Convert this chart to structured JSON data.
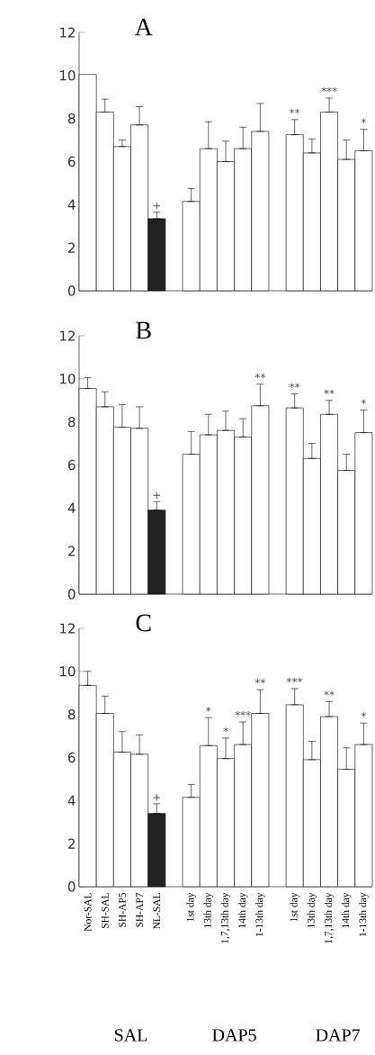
{
  "chart_data": [
    {
      "type": "bar",
      "title": "A",
      "categories": [
        null,
        null,
        null,
        null,
        null,
        null,
        null,
        null,
        null,
        null,
        null,
        null,
        null,
        null,
        null,
        null,
        null
      ],
      "values": [
        10.05,
        8.3,
        6.7,
        7.7,
        3.35,
        null,
        4.15,
        6.6,
        6.0,
        6.6,
        7.4,
        null,
        7.25,
        6.4,
        8.3,
        6.1,
        6.5
      ],
      "errors": [
        null,
        [
          8.3,
          8.9
        ],
        [
          6.7,
          7.0
        ],
        [
          7.7,
          8.55
        ],
        [
          3.35,
          3.65
        ],
        null,
        [
          4.15,
          4.75
        ],
        [
          6.6,
          7.85
        ],
        [
          6.0,
          6.95
        ],
        [
          6.6,
          7.6
        ],
        [
          7.4,
          8.7
        ],
        null,
        [
          7.25,
          7.95
        ],
        [
          6.4,
          7.05
        ],
        [
          8.3,
          8.95
        ],
        [
          6.1,
          7.0
        ],
        [
          6.5,
          7.5
        ]
      ],
      "value_labels": [
        null,
        null,
        null,
        null,
        "+",
        null,
        null,
        null,
        null,
        null,
        null,
        null,
        "**",
        null,
        "***",
        null,
        "*"
      ],
      "colors": [
        "#ffffff",
        "#ffffff",
        "#ffffff",
        "#ffffff",
        "#222222",
        null,
        "#ffffff",
        "#ffffff",
        "#ffffff",
        "#ffffff",
        "#ffffff",
        null,
        "#ffffff",
        "#ffffff",
        "#ffffff",
        "#ffffff",
        "#ffffff"
      ],
      "ylim": [
        0,
        12
      ],
      "yticks": [
        0,
        2,
        4,
        6,
        8,
        10,
        12
      ]
    },
    {
      "type": "bar",
      "title": "B",
      "categories": [
        null,
        null,
        null,
        null,
        null,
        null,
        null,
        null,
        null,
        null,
        null,
        null,
        null,
        null,
        null,
        null,
        null
      ],
      "values": [
        9.55,
        8.7,
        7.75,
        7.7,
        3.9,
        null,
        6.5,
        7.4,
        7.6,
        7.3,
        8.75,
        null,
        8.65,
        6.3,
        8.35,
        5.75,
        7.5
      ],
      "errors": [
        [
          9.55,
          10.05
        ],
        [
          8.7,
          9.4
        ],
        [
          7.75,
          8.8
        ],
        [
          7.7,
          8.7
        ],
        [
          3.9,
          4.3
        ],
        null,
        [
          6.5,
          7.55
        ],
        [
          7.4,
          8.35
        ],
        [
          7.6,
          8.5
        ],
        [
          7.3,
          8.15
        ],
        [
          8.75,
          9.75
        ],
        null,
        [
          8.65,
          9.3
        ],
        [
          6.3,
          7.0
        ],
        [
          8.35,
          9.0
        ],
        [
          5.75,
          6.5
        ],
        [
          7.5,
          8.55
        ]
      ],
      "value_labels": [
        null,
        null,
        null,
        null,
        "+",
        null,
        null,
        null,
        null,
        null,
        "**",
        null,
        "**",
        null,
        "**",
        null,
        "*"
      ],
      "colors": [
        "#ffffff",
        "#ffffff",
        "#ffffff",
        "#ffffff",
        "#222222",
        null,
        "#ffffff",
        "#ffffff",
        "#ffffff",
        "#ffffff",
        "#ffffff",
        null,
        "#ffffff",
        "#ffffff",
        "#ffffff",
        "#ffffff",
        "#ffffff"
      ],
      "ylim": [
        0,
        12
      ],
      "yticks": [
        0,
        2,
        4,
        6,
        8,
        10,
        12
      ]
    },
    {
      "type": "bar",
      "title": "C",
      "categories": [
        "Nor-SAL",
        "SH-SAL",
        "SH-AP5",
        "SH-AP7",
        "NL-SAL",
        null,
        "1st day",
        "13th day",
        "1,7,13th day",
        "14th day",
        "1-13th day",
        null,
        "1st day",
        "13th day",
        "1,7,13th day",
        "14th day",
        "1-13th day"
      ],
      "values": [
        9.35,
        8.05,
        6.25,
        6.15,
        3.4,
        null,
        4.15,
        6.55,
        5.95,
        6.6,
        8.05,
        null,
        8.45,
        5.9,
        7.9,
        5.45,
        6.6
      ],
      "errors": [
        [
          9.35,
          10.0
        ],
        [
          8.05,
          8.85
        ],
        [
          6.25,
          7.2
        ],
        [
          6.15,
          7.05
        ],
        [
          3.4,
          3.85
        ],
        null,
        [
          4.15,
          4.75
        ],
        [
          6.55,
          7.85
        ],
        [
          5.95,
          6.9
        ],
        [
          6.6,
          7.65
        ],
        [
          8.05,
          9.15
        ],
        null,
        [
          8.45,
          9.2
        ],
        [
          5.9,
          6.75
        ],
        [
          7.9,
          8.6
        ],
        [
          5.45,
          6.45
        ],
        [
          6.6,
          7.6
        ]
      ],
      "value_labels": [
        null,
        null,
        null,
        null,
        "+",
        null,
        null,
        "*",
        "*",
        "***",
        "**",
        null,
        "***",
        null,
        "**",
        null,
        "*"
      ],
      "colors": [
        "#ffffff",
        "#ffffff",
        "#ffffff",
        "#ffffff",
        "#222222",
        null,
        "#ffffff",
        "#ffffff",
        "#ffffff",
        "#ffffff",
        "#ffffff",
        null,
        "#ffffff",
        "#ffffff",
        "#ffffff",
        "#ffffff",
        "#ffffff"
      ],
      "ylim": [
        0,
        12
      ],
      "yticks": [
        0,
        2,
        4,
        6,
        8,
        10,
        12
      ],
      "annotations": [
        "SAL",
        "DAP5",
        "DAP7"
      ]
    }
  ]
}
